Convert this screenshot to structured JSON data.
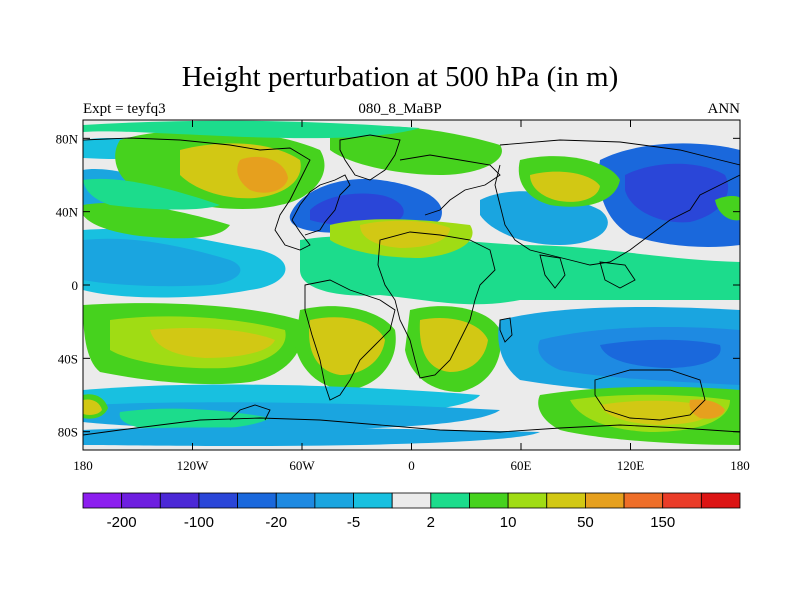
{
  "title": "Height perturbation at 500 hPa (in m)",
  "subtitle_left": "Expt = teyfq3",
  "subtitle_center": "080_8_MaBP",
  "subtitle_right": "ANN",
  "lon_ticks": [
    {
      "lon": -180,
      "label": "180"
    },
    {
      "lon": -120,
      "label": "120W"
    },
    {
      "lon": -60,
      "label": "60W"
    },
    {
      "lon": 0,
      "label": "0"
    },
    {
      "lon": 60,
      "label": "60E"
    },
    {
      "lon": 120,
      "label": "120E"
    },
    {
      "lon": 180,
      "label": "180"
    }
  ],
  "lat_ticks": [
    {
      "lat": 80,
      "label": "80N"
    },
    {
      "lat": 40,
      "label": "40N"
    },
    {
      "lat": 0,
      "label": "0"
    },
    {
      "lat": -40,
      "label": "40S"
    },
    {
      "lat": -80,
      "label": "80S"
    }
  ],
  "colorbar": {
    "colors": [
      "#8c1eef",
      "#6e1ee0",
      "#4b28d6",
      "#2a46d8",
      "#1a68dc",
      "#1e8ae2",
      "#1aa5e0",
      "#18c0e0",
      "#ebebeb",
      "#1cdc8c",
      "#46d21e",
      "#a0dc14",
      "#d2c814",
      "#e6a01e",
      "#ee6e28",
      "#ea3c28",
      "#dc1414"
    ],
    "labels": [
      {
        "after_box": 1,
        "text": "-200"
      },
      {
        "after_box": 3,
        "text": "-100"
      },
      {
        "after_box": 5,
        "text": "-20"
      },
      {
        "after_box": 7,
        "text": "-5"
      },
      {
        "after_box": 9,
        "text": "2"
      },
      {
        "after_box": 11,
        "text": "10"
      },
      {
        "after_box": 13,
        "text": "50"
      },
      {
        "after_box": 15,
        "text": "150"
      }
    ]
  }
}
